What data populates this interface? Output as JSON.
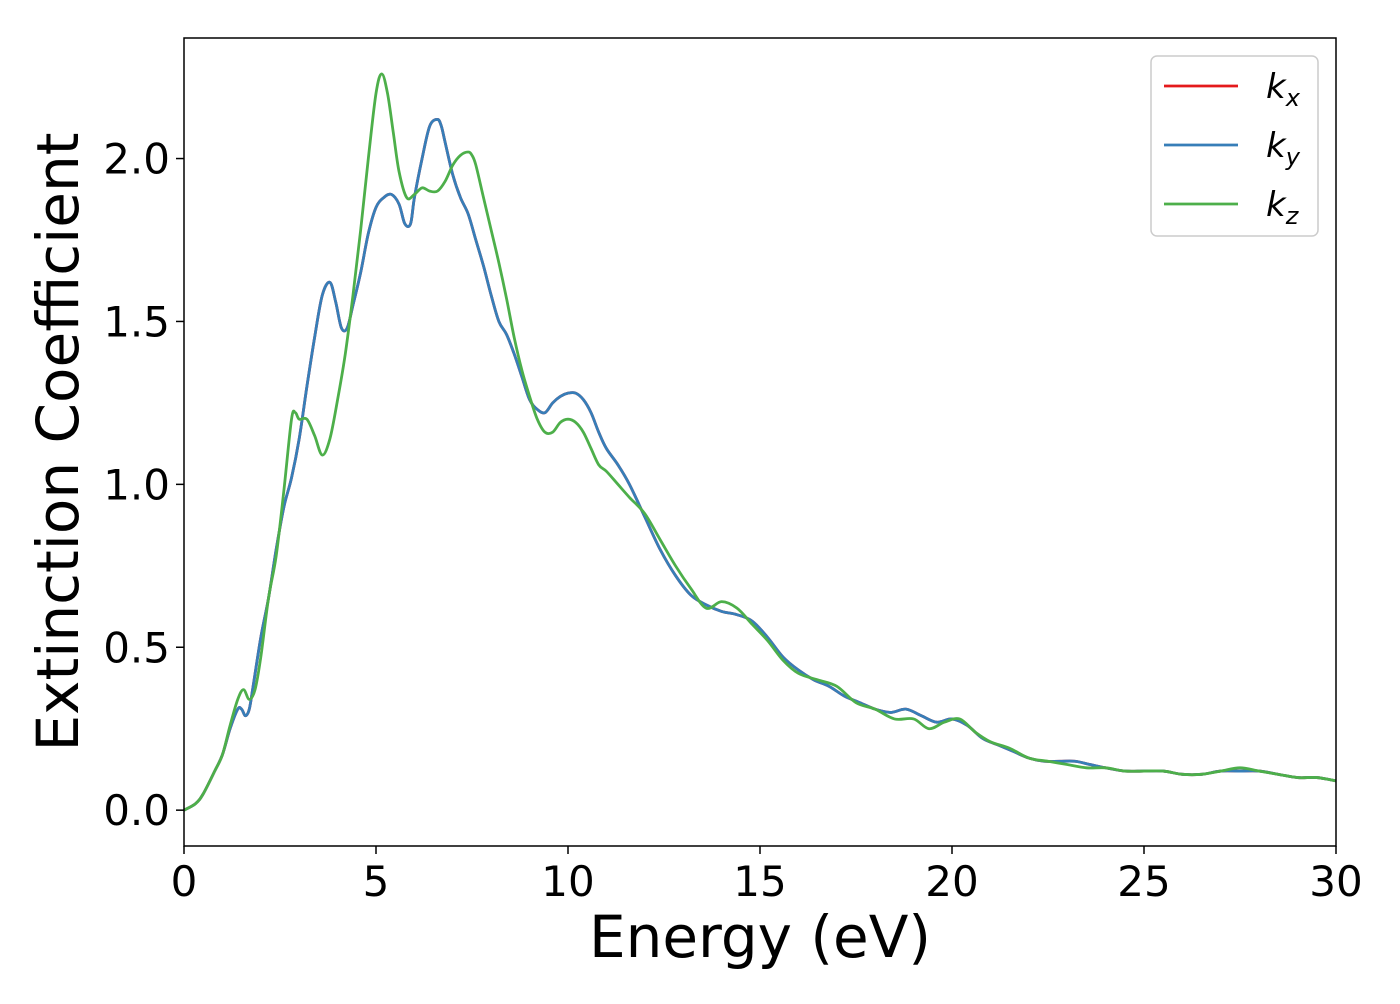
{
  "chart_data": {
    "type": "line",
    "title": "",
    "xlabel": "Energy (eV)",
    "ylabel": "Extinction Coefficient",
    "xlim": [
      0,
      30
    ],
    "ylim": [
      -0.11,
      2.37
    ],
    "xticks": [
      0,
      5,
      10,
      15,
      20,
      25,
      30
    ],
    "xtick_labels": [
      "0",
      "5",
      "10",
      "15",
      "20",
      "25",
      "30"
    ],
    "yticks": [
      0.0,
      0.5,
      1.0,
      1.5,
      2.0
    ],
    "ytick_labels": [
      "0.0",
      "0.5",
      "1.0",
      "1.5",
      "2.0"
    ],
    "grid": false,
    "legend_position": "top-right",
    "series": [
      {
        "name": "k",
        "subscript": "x",
        "color": "#e41a1c",
        "x": [
          0,
          0.3,
          0.5,
          0.8,
          1.0,
          1.2,
          1.4,
          1.5,
          1.6,
          1.7,
          1.8,
          2.0,
          2.2,
          2.4,
          2.6,
          2.8,
          3.0,
          3.2,
          3.4,
          3.6,
          3.8,
          3.95,
          4.1,
          4.25,
          4.4,
          4.6,
          4.8,
          5.0,
          5.2,
          5.4,
          5.6,
          5.75,
          5.9,
          6.0,
          6.2,
          6.4,
          6.6,
          6.7,
          6.8,
          7.0,
          7.2,
          7.4,
          7.6,
          7.8,
          8.0,
          8.2,
          8.4,
          8.6,
          8.8,
          9.0,
          9.2,
          9.4,
          9.6,
          9.8,
          10.0,
          10.2,
          10.4,
          10.6,
          10.8,
          11.0,
          11.3,
          11.6,
          12.0,
          12.4,
          12.8,
          13.2,
          13.6,
          14.0,
          14.4,
          14.8,
          15.2,
          15.6,
          16.0,
          16.4,
          16.8,
          17.2,
          17.6,
          18.0,
          18.4,
          18.8,
          19.2,
          19.6,
          20.0,
          20.4,
          20.8,
          21.2,
          21.6,
          22.0,
          22.4,
          22.8,
          23.2,
          23.6,
          24.0,
          24.5,
          25.0,
          25.5,
          26.0,
          26.5,
          27.0,
          27.5,
          28.0,
          28.5,
          29.0,
          29.5,
          30.0
        ],
        "values": [
          0.0,
          0.02,
          0.05,
          0.12,
          0.17,
          0.25,
          0.31,
          0.31,
          0.29,
          0.31,
          0.38,
          0.53,
          0.65,
          0.8,
          0.93,
          1.02,
          1.14,
          1.3,
          1.45,
          1.58,
          1.62,
          1.56,
          1.48,
          1.48,
          1.55,
          1.65,
          1.77,
          1.85,
          1.88,
          1.89,
          1.86,
          1.8,
          1.8,
          1.88,
          2.0,
          2.1,
          2.12,
          2.1,
          2.05,
          1.95,
          1.88,
          1.83,
          1.75,
          1.67,
          1.58,
          1.5,
          1.46,
          1.4,
          1.33,
          1.26,
          1.23,
          1.22,
          1.25,
          1.27,
          1.28,
          1.28,
          1.26,
          1.22,
          1.16,
          1.11,
          1.06,
          1.0,
          0.9,
          0.8,
          0.72,
          0.66,
          0.63,
          0.61,
          0.6,
          0.58,
          0.53,
          0.47,
          0.43,
          0.4,
          0.38,
          0.35,
          0.33,
          0.31,
          0.3,
          0.31,
          0.29,
          0.27,
          0.28,
          0.26,
          0.22,
          0.2,
          0.18,
          0.16,
          0.15,
          0.15,
          0.15,
          0.14,
          0.13,
          0.12,
          0.12,
          0.12,
          0.11,
          0.11,
          0.12,
          0.12,
          0.12,
          0.11,
          0.1,
          0.1,
          0.09
        ]
      },
      {
        "name": "k",
        "subscript": "y",
        "color": "#377eb8",
        "x": [
          0,
          0.3,
          0.5,
          0.8,
          1.0,
          1.2,
          1.4,
          1.5,
          1.6,
          1.7,
          1.8,
          2.0,
          2.2,
          2.4,
          2.6,
          2.8,
          3.0,
          3.2,
          3.4,
          3.6,
          3.8,
          3.95,
          4.1,
          4.25,
          4.4,
          4.6,
          4.8,
          5.0,
          5.2,
          5.4,
          5.6,
          5.75,
          5.9,
          6.0,
          6.2,
          6.4,
          6.6,
          6.7,
          6.8,
          7.0,
          7.2,
          7.4,
          7.6,
          7.8,
          8.0,
          8.2,
          8.4,
          8.6,
          8.8,
          9.0,
          9.2,
          9.4,
          9.6,
          9.8,
          10.0,
          10.2,
          10.4,
          10.6,
          10.8,
          11.0,
          11.3,
          11.6,
          12.0,
          12.4,
          12.8,
          13.2,
          13.6,
          14.0,
          14.4,
          14.8,
          15.2,
          15.6,
          16.0,
          16.4,
          16.8,
          17.2,
          17.6,
          18.0,
          18.4,
          18.8,
          19.2,
          19.6,
          20.0,
          20.4,
          20.8,
          21.2,
          21.6,
          22.0,
          22.4,
          22.8,
          23.2,
          23.6,
          24.0,
          24.5,
          25.0,
          25.5,
          26.0,
          26.5,
          27.0,
          27.5,
          28.0,
          28.5,
          29.0,
          29.5,
          30.0
        ],
        "values": [
          0.0,
          0.02,
          0.05,
          0.12,
          0.17,
          0.25,
          0.31,
          0.31,
          0.29,
          0.31,
          0.38,
          0.53,
          0.65,
          0.8,
          0.93,
          1.02,
          1.14,
          1.3,
          1.45,
          1.58,
          1.62,
          1.56,
          1.48,
          1.48,
          1.55,
          1.65,
          1.77,
          1.85,
          1.88,
          1.89,
          1.86,
          1.8,
          1.8,
          1.88,
          2.0,
          2.1,
          2.12,
          2.1,
          2.05,
          1.95,
          1.88,
          1.83,
          1.75,
          1.67,
          1.58,
          1.5,
          1.46,
          1.4,
          1.33,
          1.26,
          1.23,
          1.22,
          1.25,
          1.27,
          1.28,
          1.28,
          1.26,
          1.22,
          1.16,
          1.11,
          1.06,
          1.0,
          0.9,
          0.8,
          0.72,
          0.66,
          0.63,
          0.61,
          0.6,
          0.58,
          0.53,
          0.47,
          0.43,
          0.4,
          0.38,
          0.35,
          0.33,
          0.31,
          0.3,
          0.31,
          0.29,
          0.27,
          0.28,
          0.26,
          0.22,
          0.2,
          0.18,
          0.16,
          0.15,
          0.15,
          0.15,
          0.14,
          0.13,
          0.12,
          0.12,
          0.12,
          0.11,
          0.11,
          0.12,
          0.12,
          0.12,
          0.11,
          0.1,
          0.1,
          0.09
        ]
      },
      {
        "name": "k",
        "subscript": "z",
        "color": "#4daf4a",
        "x": [
          0,
          0.3,
          0.5,
          0.8,
          1.0,
          1.2,
          1.4,
          1.55,
          1.7,
          1.85,
          2.0,
          2.2,
          2.4,
          2.6,
          2.8,
          2.9,
          3.0,
          3.2,
          3.4,
          3.6,
          3.8,
          4.0,
          4.2,
          4.4,
          4.6,
          4.8,
          5.0,
          5.15,
          5.3,
          5.45,
          5.6,
          5.8,
          6.0,
          6.2,
          6.4,
          6.6,
          6.8,
          7.0,
          7.2,
          7.4,
          7.5,
          7.6,
          7.8,
          8.0,
          8.2,
          8.4,
          8.6,
          8.8,
          9.0,
          9.2,
          9.4,
          9.6,
          9.8,
          10.0,
          10.2,
          10.4,
          10.6,
          10.8,
          11.0,
          11.3,
          11.6,
          12.0,
          12.4,
          12.8,
          13.2,
          13.6,
          14.0,
          14.4,
          14.8,
          15.2,
          15.6,
          16.0,
          16.5,
          17.0,
          17.5,
          18.0,
          18.5,
          19.0,
          19.4,
          19.8,
          20.2,
          20.6,
          21.0,
          21.5,
          22.0,
          22.5,
          23.0,
          23.5,
          24.0,
          24.5,
          25.0,
          25.5,
          26.0,
          26.5,
          27.0,
          27.5,
          28.0,
          28.5,
          29.0,
          29.5,
          30.0
        ],
        "values": [
          0.0,
          0.02,
          0.05,
          0.12,
          0.17,
          0.26,
          0.34,
          0.37,
          0.34,
          0.37,
          0.47,
          0.65,
          0.78,
          0.98,
          1.2,
          1.22,
          1.2,
          1.2,
          1.15,
          1.09,
          1.14,
          1.26,
          1.4,
          1.58,
          1.78,
          2.0,
          2.2,
          2.26,
          2.2,
          2.08,
          1.96,
          1.88,
          1.89,
          1.91,
          1.9,
          1.9,
          1.93,
          1.98,
          2.01,
          2.02,
          2.01,
          1.98,
          1.88,
          1.78,
          1.68,
          1.57,
          1.45,
          1.35,
          1.27,
          1.2,
          1.16,
          1.16,
          1.19,
          1.2,
          1.19,
          1.16,
          1.11,
          1.06,
          1.04,
          1.0,
          0.96,
          0.91,
          0.83,
          0.75,
          0.68,
          0.62,
          0.64,
          0.62,
          0.57,
          0.52,
          0.46,
          0.42,
          0.4,
          0.38,
          0.33,
          0.31,
          0.28,
          0.28,
          0.25,
          0.27,
          0.28,
          0.24,
          0.21,
          0.19,
          0.16,
          0.15,
          0.14,
          0.13,
          0.13,
          0.12,
          0.12,
          0.12,
          0.11,
          0.11,
          0.12,
          0.13,
          0.12,
          0.11,
          0.1,
          0.1,
          0.09
        ]
      }
    ]
  }
}
